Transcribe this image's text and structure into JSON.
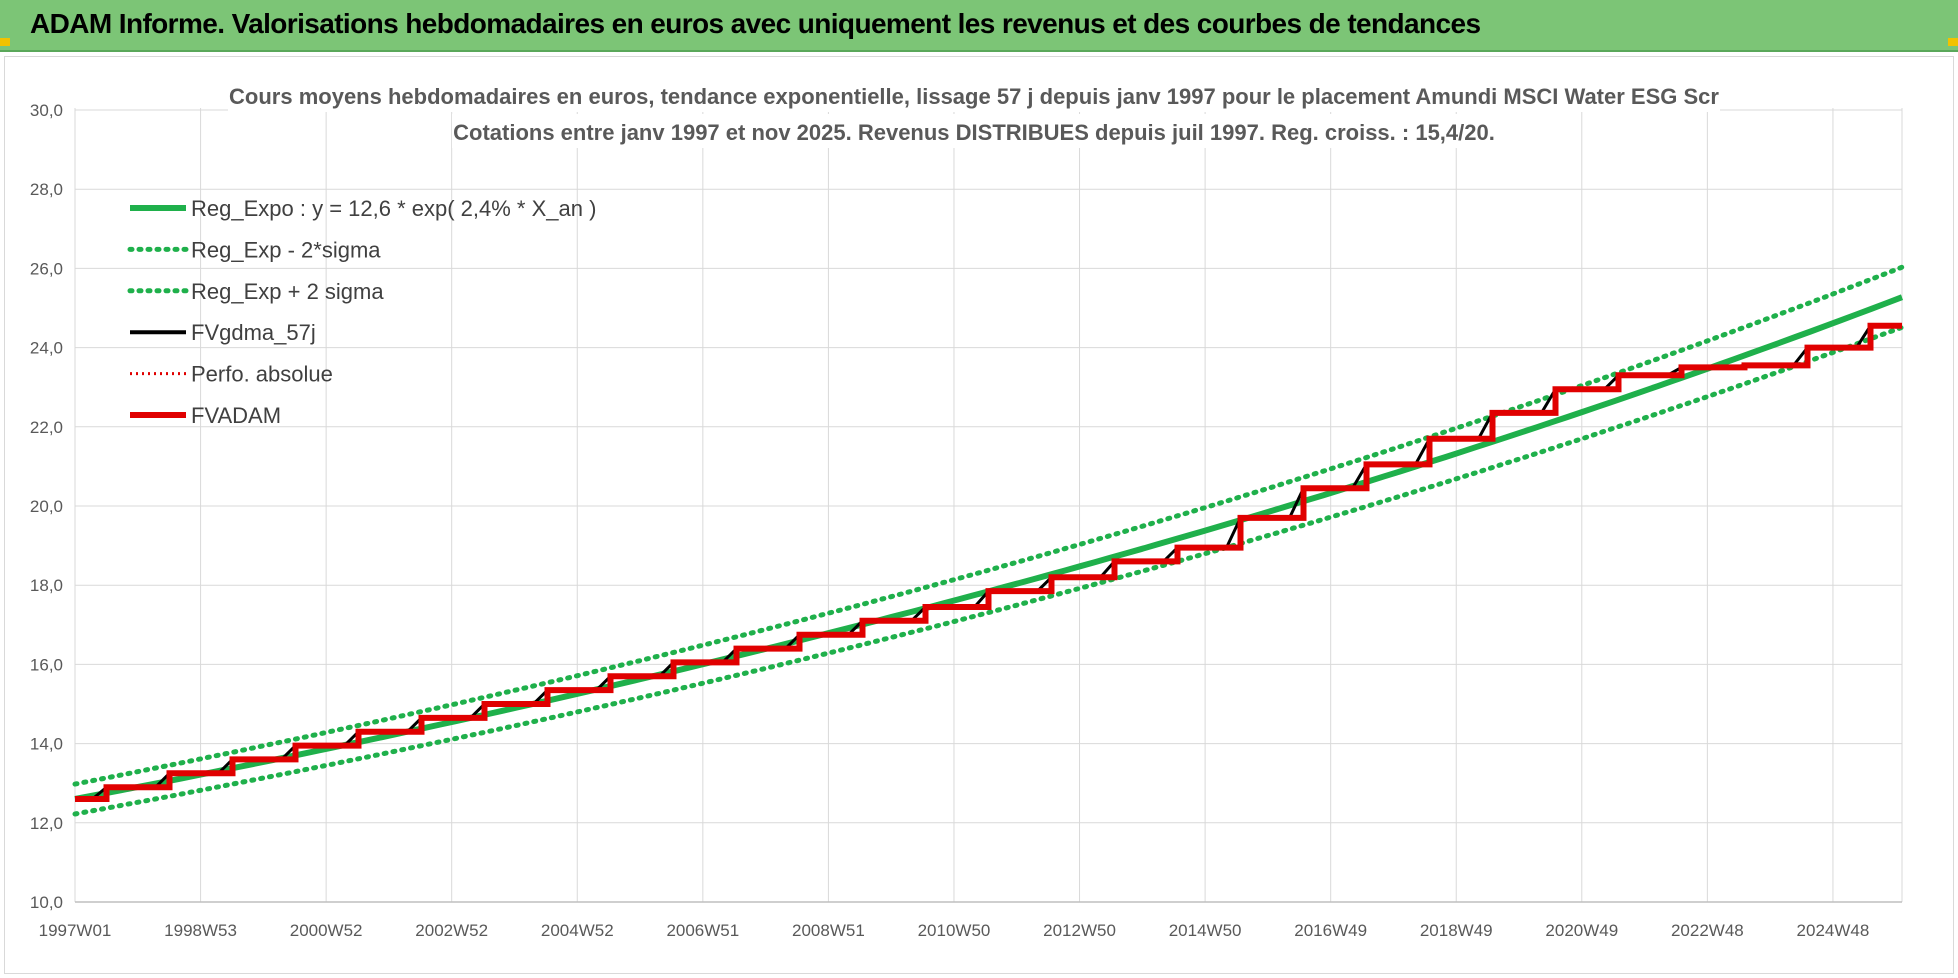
{
  "header": {
    "title": "ADAM Informe. Valorisations hebdomadaires en euros avec uniquement les revenus et des courbes de tendances"
  },
  "colors": {
    "header_bg": "#7cc576",
    "reg_expo": "#1fb04b",
    "sigma": "#1fb04b",
    "fvgdma": "#000000",
    "perfo": "#e00000",
    "fvadam": "#e00000"
  },
  "chart_data": {
    "type": "line",
    "title_line1": "Cours moyens hebdomadaires en euros, tendance exponentielle, lissage 57 j depuis janv 1997  pour le placement Amundi MSCI Water ESG Scr",
    "title_line2": "Cotations entre janv 1997 et nov 2025. Revenus  DISTRIBUES depuis juil 1997. Reg. croiss. : 15,4/20.",
    "x_tick_labels": [
      "1997W01",
      "1998W53",
      "2000W52",
      "2002W52",
      "2004W52",
      "2006W51",
      "2008W51",
      "2010W50",
      "2012W50",
      "2014W50",
      "2016W49",
      "2018W49",
      "2020W49",
      "2022W48",
      "2024W48"
    ],
    "x_range_years": [
      1997.0,
      2026.0
    ],
    "y_tick_labels": [
      "10,0",
      "12,0",
      "14,0",
      "16,0",
      "18,0",
      "20,0",
      "22,0",
      "24,0",
      "26,0",
      "28,0",
      "30,0"
    ],
    "ylim": [
      10,
      30
    ],
    "grid": true,
    "legend_position": "top-left",
    "legend": [
      {
        "label": "Reg_Expo : y = 12,6 * exp( 2,4% *  X_an )",
        "style": "solid-thick",
        "color_key": "reg_expo"
      },
      {
        "label": "Reg_Exp - 2*sigma",
        "style": "dotted",
        "color_key": "sigma"
      },
      {
        "label": "Reg_Exp + 2 sigma",
        "style": "dotted",
        "color_key": "sigma"
      },
      {
        "label": "FVgdma_57j",
        "style": "solid",
        "color_key": "fvgdma"
      },
      {
        "label": "Perfo. absolue",
        "style": "dotted-thin",
        "color_key": "perfo"
      },
      {
        "label": "FVADAM",
        "style": "solid-thick",
        "color_key": "fvadam"
      }
    ],
    "regression": {
      "a": 12.6,
      "rate": 0.024,
      "sigma_factor": 0.03
    },
    "fvadam_steps": [
      {
        "year": 1997.0,
        "value": 12.6
      },
      {
        "year": 1997.5,
        "value": 12.9
      },
      {
        "year": 1998.5,
        "value": 13.25
      },
      {
        "year": 1999.5,
        "value": 13.6
      },
      {
        "year": 2000.5,
        "value": 13.95
      },
      {
        "year": 2001.5,
        "value": 14.3
      },
      {
        "year": 2002.5,
        "value": 14.65
      },
      {
        "year": 2003.5,
        "value": 15.0
      },
      {
        "year": 2004.5,
        "value": 15.35
      },
      {
        "year": 2005.5,
        "value": 15.7
      },
      {
        "year": 2006.5,
        "value": 16.05
      },
      {
        "year": 2007.5,
        "value": 16.4
      },
      {
        "year": 2008.5,
        "value": 16.75
      },
      {
        "year": 2009.5,
        "value": 17.1
      },
      {
        "year": 2010.5,
        "value": 17.45
      },
      {
        "year": 2011.5,
        "value": 17.85
      },
      {
        "year": 2012.5,
        "value": 18.2
      },
      {
        "year": 2013.5,
        "value": 18.6
      },
      {
        "year": 2014.5,
        "value": 18.95
      },
      {
        "year": 2015.5,
        "value": 19.7
      },
      {
        "year": 2016.5,
        "value": 20.45
      },
      {
        "year": 2017.5,
        "value": 21.05
      },
      {
        "year": 2018.5,
        "value": 21.7
      },
      {
        "year": 2019.5,
        "value": 22.35
      },
      {
        "year": 2020.5,
        "value": 22.95
      },
      {
        "year": 2021.5,
        "value": 23.3
      },
      {
        "year": 2022.5,
        "value": 23.5
      },
      {
        "year": 2023.5,
        "value": 23.55
      },
      {
        "year": 2024.5,
        "value": 24.0
      },
      {
        "year": 2025.5,
        "value": 24.55
      },
      {
        "year": 2026.0,
        "value": 24.55
      }
    ]
  }
}
